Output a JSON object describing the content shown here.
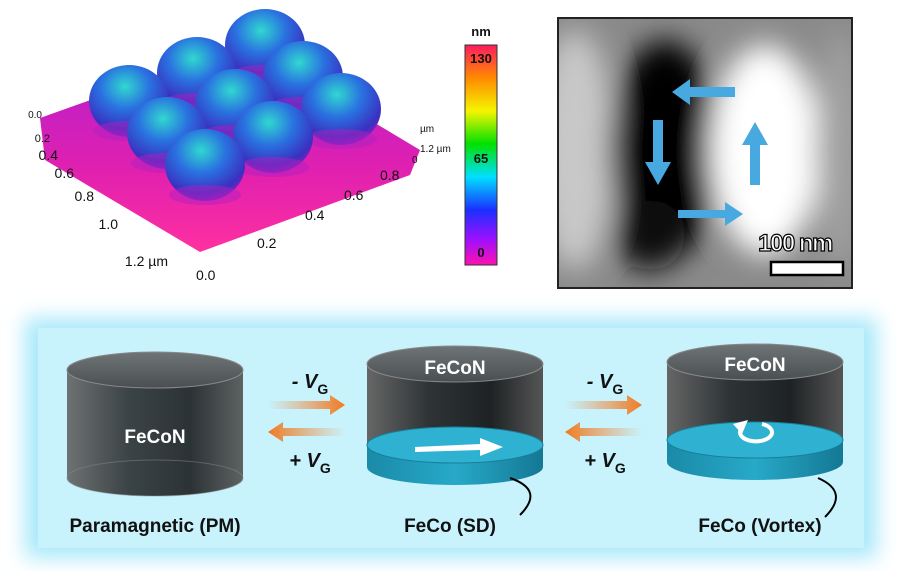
{
  "afm": {
    "left_axis_ticks": [
      "0.0",
      "0.2",
      "0.4",
      "0.6",
      "0.8",
      "1.0",
      "1.2 µm"
    ],
    "right_axis_ticks": [
      "0.0",
      "0.2",
      "0.4",
      "0.6",
      "0.8",
      "1.2 µm"
    ],
    "z_axis_labels": [
      "µm",
      "0"
    ],
    "colorbar": {
      "unit": "nm",
      "ticks": [
        "130",
        "65",
        "0"
      ]
    }
  },
  "mfm": {
    "scale_bar": "100 nm"
  },
  "diagram": {
    "states": [
      {
        "layer": "FeCoN",
        "caption": "Paramagnetic (PM)"
      },
      {
        "layer": "FeCoN",
        "caption": "FeCo (SD)"
      },
      {
        "layer": "FeCoN",
        "caption": "FeCo (Vortex)"
      }
    ],
    "transitions": [
      {
        "forward": {
          "text": "- V",
          "sub": "G"
        },
        "backward": {
          "text": "+ V",
          "sub": "G"
        }
      },
      {
        "forward": {
          "text": "- V",
          "sub": "G"
        },
        "backward": {
          "text": "+ V",
          "sub": "G"
        }
      }
    ]
  }
}
